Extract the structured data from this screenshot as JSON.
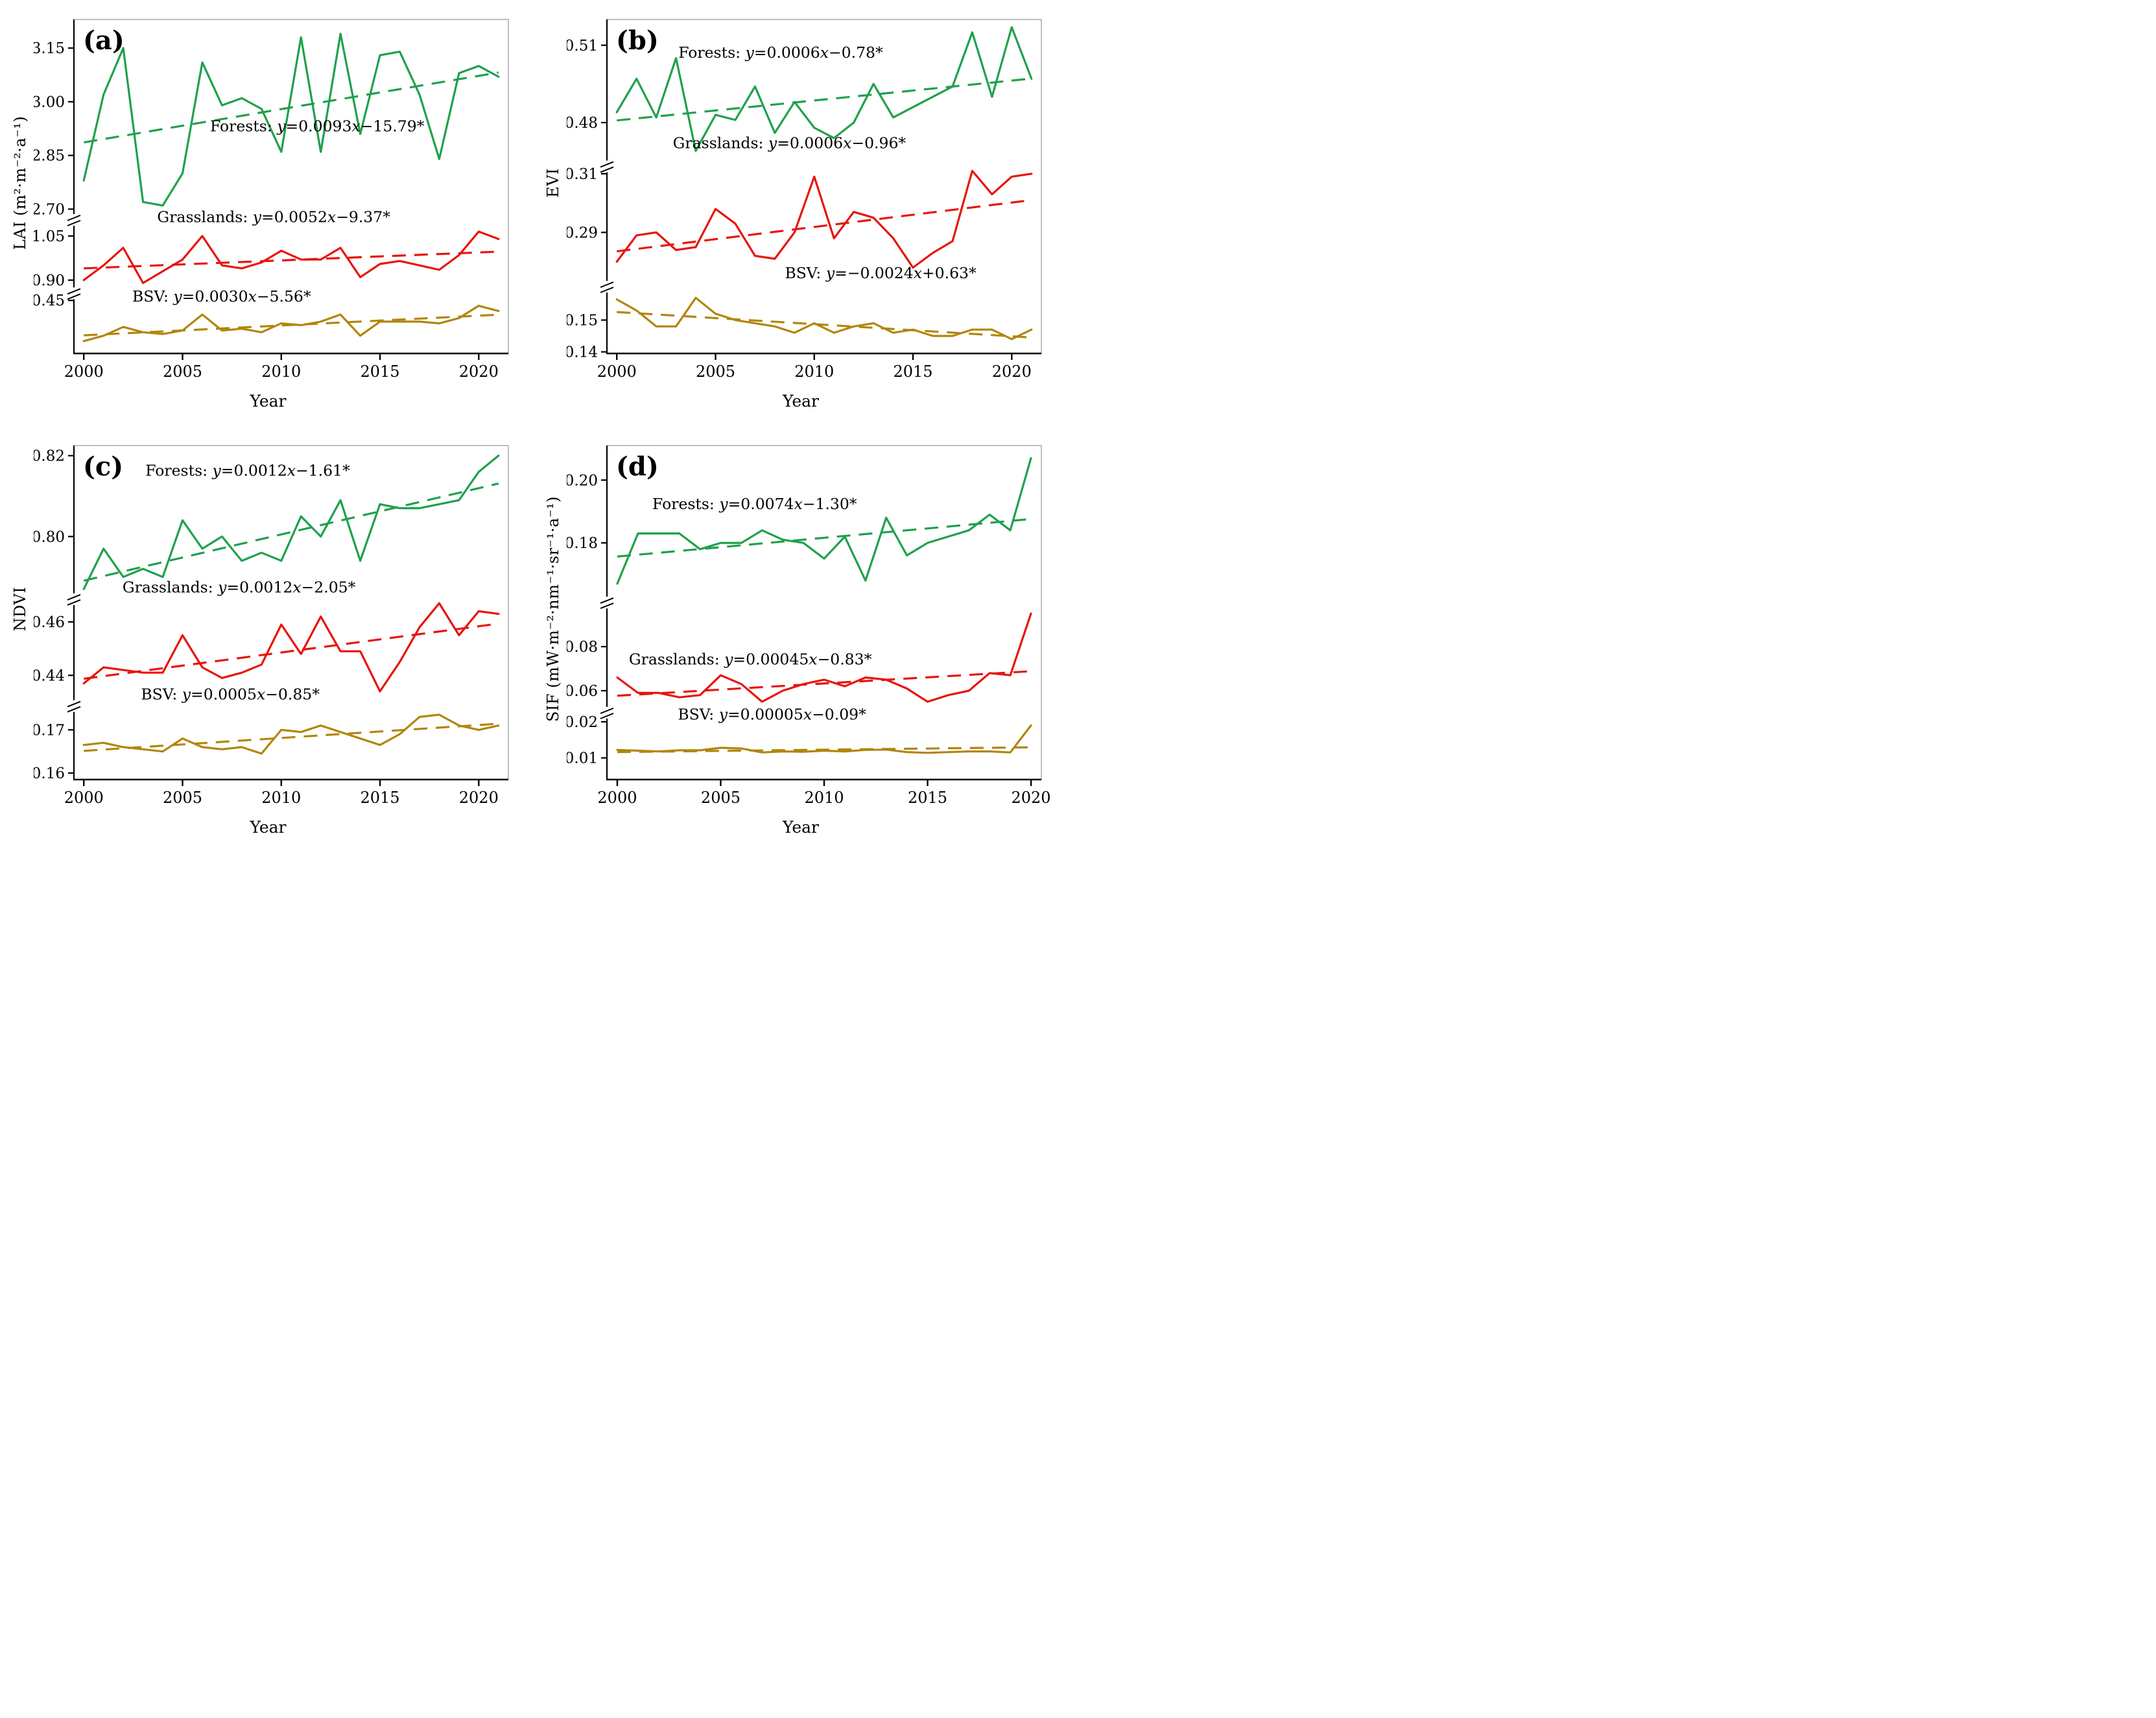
{
  "figure": {
    "background": "#ffffff",
    "x_axis_title": "Year"
  },
  "colors": {
    "forests": "#1FA14C",
    "grasslands": "#E8140C",
    "bsv": "#B1860B",
    "axis": "#000000",
    "border": "#aaaaaa"
  },
  "chart_data": [
    {
      "id": "a",
      "type": "line",
      "panel_label": "(a)",
      "ylabel": "LAI (m²·m⁻²·a⁻¹)",
      "xlabel": "Year",
      "x": [
        2000,
        2001,
        2002,
        2003,
        2004,
        2005,
        2006,
        2007,
        2008,
        2009,
        2010,
        2011,
        2012,
        2013,
        2014,
        2015,
        2016,
        2017,
        2018,
        2019,
        2020,
        2021
      ],
      "x_ticks": [
        2000,
        2005,
        2010,
        2015,
        2020
      ],
      "x_domain": [
        1999.5,
        2021.5
      ],
      "grid": false,
      "segments": [
        {
          "domain": [
            2.67,
            3.23
          ],
          "ticks": [
            2.7,
            2.85,
            3.0,
            3.15
          ],
          "height_frac": 0.6
        },
        {
          "domain": [
            0.855,
            1.105
          ],
          "ticks": [
            0.9,
            1.05
          ],
          "height_frac": 0.22
        },
        {
          "domain": [
            0.3,
            0.47
          ],
          "ticks": [
            0.45
          ],
          "height_frac": 0.18
        }
      ],
      "series": [
        {
          "name": "Forests",
          "color": "#1FA14C",
          "segment": 0,
          "values": [
            2.78,
            3.02,
            3.15,
            2.72,
            2.71,
            2.8,
            3.11,
            2.99,
            3.01,
            2.98,
            2.86,
            3.18,
            2.86,
            3.19,
            2.91,
            3.13,
            3.14,
            3.02,
            2.84,
            3.08,
            3.1,
            3.07
          ],
          "annotation": {
            "text": "Forests: y=0.0093x−15.79*",
            "x_frac": 0.56,
            "y_frac": 0.335
          }
        },
        {
          "name": "Grasslands",
          "color": "#E8140C",
          "segment": 1,
          "values": [
            0.9,
            0.95,
            1.01,
            0.89,
            0.93,
            0.97,
            1.05,
            0.95,
            0.94,
            0.96,
            1.0,
            0.97,
            0.97,
            1.01,
            0.91,
            0.955,
            0.965,
            0.95,
            0.935,
            0.985,
            1.065,
            1.04
          ],
          "annotation": {
            "text": "Grasslands: y=0.0052x−9.37*",
            "x_frac": 0.46,
            "y_frac": 0.607
          }
        },
        {
          "name": "BSV",
          "color": "#B1860B",
          "segment": 2,
          "values": [
            0.335,
            0.35,
            0.375,
            0.36,
            0.355,
            0.365,
            0.41,
            0.365,
            0.37,
            0.36,
            0.385,
            0.38,
            0.39,
            0.41,
            0.35,
            0.39,
            0.39,
            0.39,
            0.385,
            0.4,
            0.435,
            0.42
          ],
          "annotation": {
            "text": "BSV: y=0.0030x−5.56*",
            "x_frac": 0.34,
            "y_frac": 0.845
          }
        }
      ]
    },
    {
      "id": "b",
      "type": "line",
      "panel_label": "(b)",
      "ylabel": "EVI",
      "xlabel": "Year",
      "x": [
        2000,
        2001,
        2002,
        2003,
        2004,
        2005,
        2006,
        2007,
        2008,
        2009,
        2010,
        2011,
        2012,
        2013,
        2014,
        2015,
        2016,
        2017,
        2018,
        2019,
        2020,
        2021
      ],
      "x_ticks": [
        2000,
        2005,
        2010,
        2015,
        2020
      ],
      "x_domain": [
        1999.5,
        2021.5
      ],
      "grid": false,
      "segments": [
        {
          "domain": [
            0.463,
            0.52
          ],
          "ticks": [
            0.48,
            0.51
          ],
          "height_frac": 0.44
        },
        {
          "domain": [
            0.2715,
            0.3125
          ],
          "ticks": [
            0.29,
            0.31
          ],
          "height_frac": 0.36
        },
        {
          "domain": [
            0.1395,
            0.1605
          ],
          "ticks": [
            0.14,
            0.15
          ],
          "height_frac": 0.2
        }
      ],
      "series": [
        {
          "name": "Forests",
          "color": "#1FA14C",
          "segment": 0,
          "values": [
            0.484,
            0.497,
            0.482,
            0.505,
            0.469,
            0.483,
            0.481,
            0.494,
            0.476,
            0.488,
            0.478,
            0.474,
            0.48,
            0.495,
            0.482,
            0.486,
            0.49,
            0.494,
            0.515,
            0.49,
            0.517,
            0.497
          ],
          "annotation": {
            "text": "Forests: y=0.0006x−0.78*",
            "x_frac": 0.4,
            "y_frac": 0.115
          }
        },
        {
          "name": "Grasslands",
          "color": "#E8140C",
          "segment": 1,
          "values": [
            0.28,
            0.289,
            0.29,
            0.284,
            0.285,
            0.298,
            0.293,
            0.282,
            0.281,
            0.29,
            0.309,
            0.288,
            0.297,
            0.295,
            0.288,
            0.278,
            0.283,
            0.287,
            0.311,
            0.303,
            0.309,
            0.31
          ],
          "annotation": {
            "text": "Grasslands: y=0.0006x−0.96*",
            "x_frac": 0.42,
            "y_frac": 0.385
          }
        },
        {
          "name": "BSV",
          "color": "#B1860B",
          "segment": 2,
          "values": [
            0.1565,
            0.153,
            0.148,
            0.148,
            0.157,
            0.152,
            0.15,
            0.149,
            0.148,
            0.146,
            0.149,
            0.146,
            0.148,
            0.149,
            0.146,
            0.147,
            0.145,
            0.145,
            0.147,
            0.147,
            0.144,
            0.147
          ],
          "annotation": {
            "text": "BSV: y=−0.0024x+0.63*",
            "x_frac": 0.63,
            "y_frac": 0.775
          }
        }
      ]
    },
    {
      "id": "c",
      "type": "line",
      "panel_label": "(c)",
      "ylabel": "NDVI",
      "xlabel": "Year",
      "x": [
        2000,
        2001,
        2002,
        2003,
        2004,
        2005,
        2006,
        2007,
        2008,
        2009,
        2010,
        2011,
        2012,
        2013,
        2014,
        2015,
        2016,
        2017,
        2018,
        2019,
        2020,
        2021
      ],
      "x_ticks": [
        2000,
        2005,
        2010,
        2015,
        2020
      ],
      "x_domain": [
        1999.5,
        2021.5
      ],
      "grid": false,
      "segments": [
        {
          "domain": [
            0.7845,
            0.8225
          ],
          "ticks": [
            0.8,
            0.82
          ],
          "height_frac": 0.46
        },
        {
          "domain": [
            0.4285,
            0.4685
          ],
          "ticks": [
            0.44,
            0.46
          ],
          "height_frac": 0.32
        },
        {
          "domain": [
            0.1585,
            0.1755
          ],
          "ticks": [
            0.16,
            0.17
          ],
          "height_frac": 0.22
        }
      ],
      "series": [
        {
          "name": "Forests",
          "color": "#1FA14C",
          "segment": 0,
          "values": [
            0.787,
            0.797,
            0.79,
            0.792,
            0.79,
            0.804,
            0.797,
            0.8,
            0.794,
            0.796,
            0.794,
            0.805,
            0.8,
            0.809,
            0.794,
            0.808,
            0.807,
            0.807,
            0.808,
            0.809,
            0.816,
            0.82
          ],
          "annotation": {
            "text": "Forests: y=0.0012x−1.61*",
            "x_frac": 0.4,
            "y_frac": 0.09
          }
        },
        {
          "name": "Grasslands",
          "color": "#E8140C",
          "segment": 1,
          "values": [
            0.437,
            0.443,
            0.442,
            0.441,
            0.441,
            0.455,
            0.443,
            0.439,
            0.441,
            0.444,
            0.459,
            0.448,
            0.462,
            0.449,
            0.449,
            0.434,
            0.445,
            0.458,
            0.467,
            0.455,
            0.464,
            0.463
          ],
          "annotation": {
            "text": "Grasslands: y=0.0012x−2.05*",
            "x_frac": 0.38,
            "y_frac": 0.44
          }
        },
        {
          "name": "BSV",
          "color": "#B1860B",
          "segment": 2,
          "values": [
            0.1665,
            0.167,
            0.166,
            0.1655,
            0.165,
            0.168,
            0.166,
            0.1655,
            0.166,
            0.1645,
            0.17,
            0.1695,
            0.171,
            0.1695,
            0.168,
            0.1665,
            0.169,
            0.173,
            0.1735,
            0.171,
            0.17,
            0.171
          ],
          "annotation": {
            "text": "BSV: y=0.0005x−0.85*",
            "x_frac": 0.36,
            "y_frac": 0.76
          }
        }
      ]
    },
    {
      "id": "d",
      "type": "line",
      "panel_label": "(d)",
      "ylabel": "SIF (mW·m⁻²·nm⁻¹·sr⁻¹·a⁻¹)",
      "xlabel": "Year",
      "x": [
        2000,
        2001,
        2002,
        2003,
        2004,
        2005,
        2006,
        2007,
        2008,
        2009,
        2010,
        2011,
        2012,
        2013,
        2014,
        2015,
        2016,
        2017,
        2018,
        2019,
        2020
      ],
      "x_ticks": [
        2000,
        2005,
        2010,
        2015,
        2020
      ],
      "x_domain": [
        1999.5,
        2020.5
      ],
      "grid": false,
      "segments": [
        {
          "domain": [
            0.161,
            0.211
          ],
          "ticks": [
            0.18,
            0.2
          ],
          "height_frac": 0.47
        },
        {
          "domain": [
            0.05,
            0.1
          ],
          "ticks": [
            0.06,
            0.08
          ],
          "height_frac": 0.33
        },
        {
          "domain": [
            0.004,
            0.0225
          ],
          "ticks": [
            0.01,
            0.02
          ],
          "height_frac": 0.2
        }
      ],
      "series": [
        {
          "name": "Forests",
          "color": "#1FA14C",
          "segment": 0,
          "values": [
            0.167,
            0.183,
            0.183,
            0.183,
            0.178,
            0.18,
            0.18,
            0.184,
            0.181,
            0.18,
            0.175,
            0.182,
            0.168,
            0.188,
            0.176,
            0.18,
            0.182,
            0.184,
            0.189,
            0.184,
            0.207
          ],
          "annotation": {
            "text": "Forests: y=0.0074x−1.30*",
            "x_frac": 0.34,
            "y_frac": 0.19
          }
        },
        {
          "name": "Grasslands",
          "color": "#E8140C",
          "segment": 1,
          "values": [
            0.066,
            0.059,
            0.059,
            0.057,
            0.058,
            0.067,
            0.063,
            0.055,
            0.06,
            0.063,
            0.065,
            0.062,
            0.066,
            0.065,
            0.061,
            0.055,
            0.058,
            0.06,
            0.068,
            0.067,
            0.095
          ],
          "annotation": {
            "text": "Grasslands: y=0.00045x−0.83*",
            "x_frac": 0.33,
            "y_frac": 0.655
          }
        },
        {
          "name": "BSV",
          "color": "#B1860B",
          "segment": 2,
          "values": [
            0.0122,
            0.012,
            0.0118,
            0.0121,
            0.0121,
            0.0128,
            0.0126,
            0.0115,
            0.0118,
            0.0117,
            0.012,
            0.0118,
            0.0122,
            0.0123,
            0.0116,
            0.0114,
            0.0116,
            0.0118,
            0.0118,
            0.0115,
            0.019
          ],
          "annotation": {
            "text": "BSV: y=0.00005x−0.09*",
            "x_frac": 0.38,
            "y_frac": 0.82
          }
        }
      ]
    }
  ]
}
